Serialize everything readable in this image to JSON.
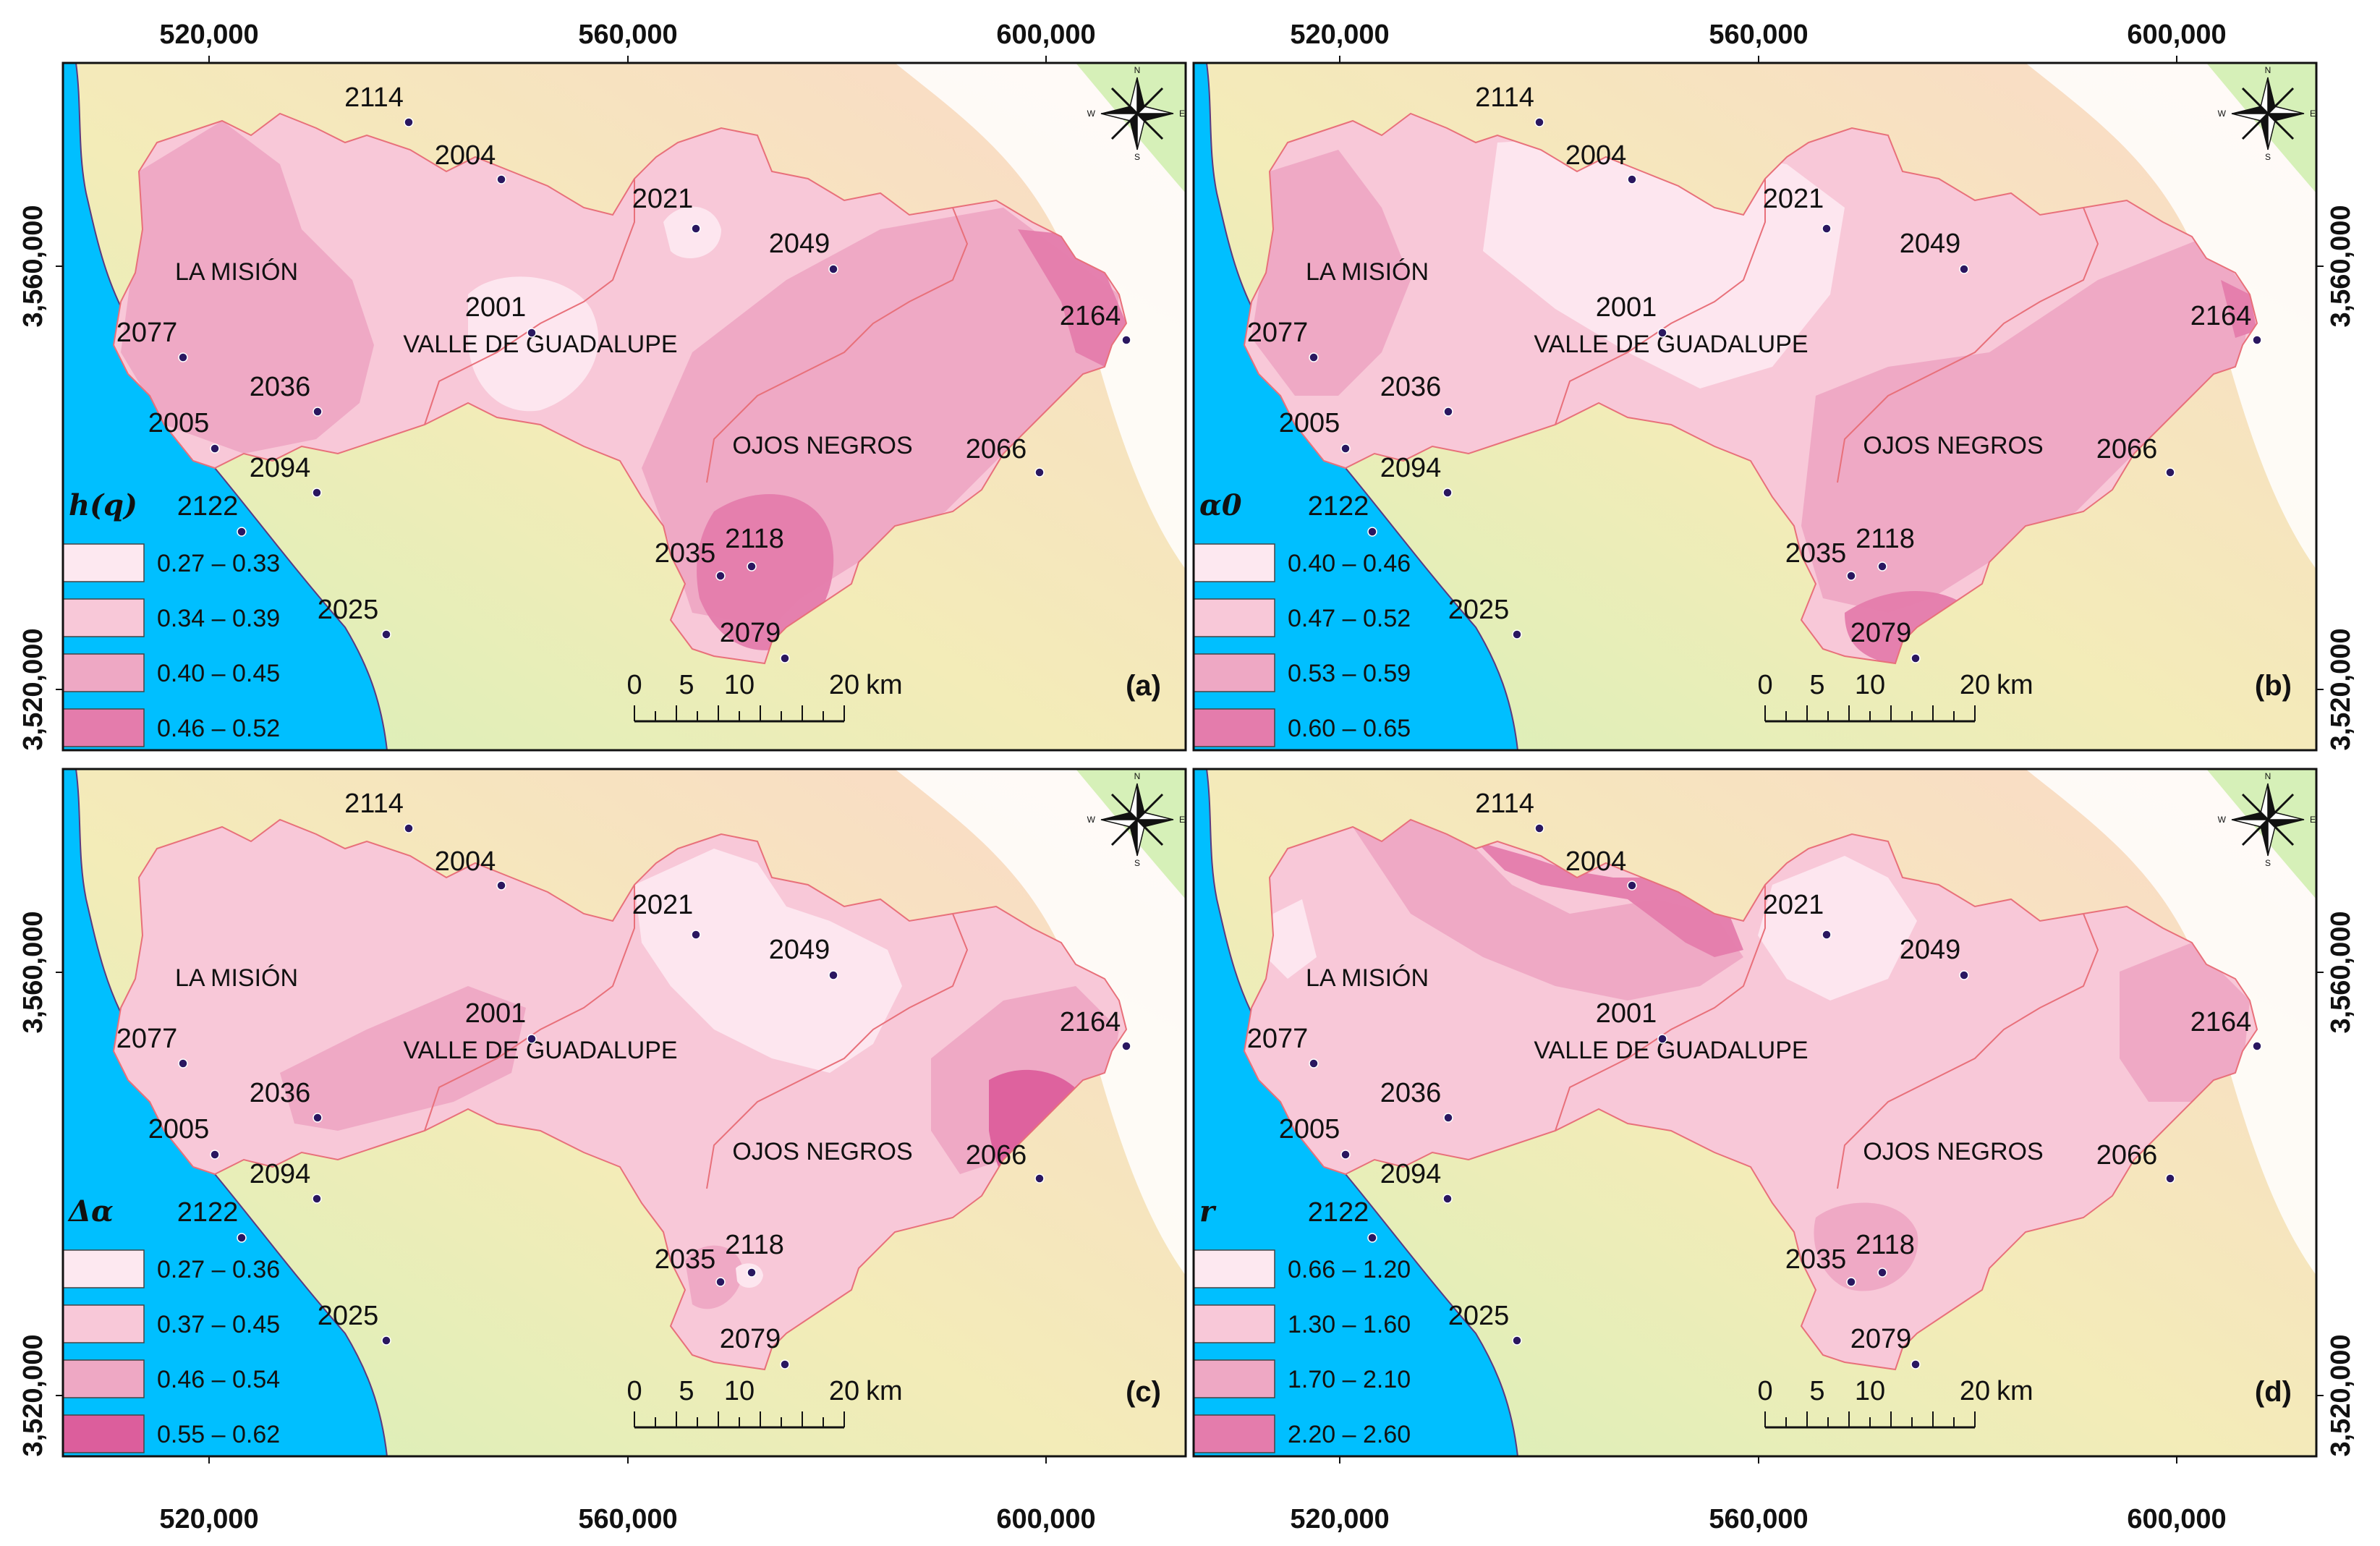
{
  "figure": {
    "x_ticks": [
      "520,000",
      "560,000",
      "600,000"
    ],
    "y_ticks": [
      "3,560,000",
      "3,520,000"
    ],
    "scale_bar": {
      "labels": [
        "0",
        "5",
        "10",
        "20"
      ],
      "unit": "km"
    },
    "compass": {
      "n": "N",
      "s": "S",
      "e": "E",
      "w": "W"
    },
    "colors": {
      "ocean": "#00bfff",
      "terrain_low": "#d6f0b8",
      "terrain_mid": "#f3ecb8",
      "terrain_high": "#fbd9c8",
      "basin_edge": "#e8707a",
      "class_1": "#fde8f0",
      "class_2": "#f8c8d8",
      "class_3": "#eea8c4",
      "class_4": "#e47cac",
      "station_dot": "#2a1760"
    },
    "regions": [
      "LA MISIÓN",
      "VALLE DE GUADALUPE",
      "OJOS NEGROS"
    ],
    "stations": [
      "2114",
      "2004",
      "2021",
      "2049",
      "2164",
      "2001",
      "2077",
      "2036",
      "2005",
      "2094",
      "2066",
      "2122",
      "2035",
      "2118",
      "2025",
      "2079"
    ],
    "panels": [
      {
        "letter": "(a)",
        "variable": "h(q)",
        "legend": [
          {
            "range": "0.27 – 0.33",
            "color": "#fde8f0"
          },
          {
            "range": "0.34 – 0.39",
            "color": "#f8c8d8"
          },
          {
            "range": "0.40 – 0.45",
            "color": "#eea8c4"
          },
          {
            "range": "0.46 – 0.52",
            "color": "#e47cac"
          }
        ]
      },
      {
        "letter": "(b)",
        "variable": "α0",
        "legend": [
          {
            "range": "0.40 – 0.46",
            "color": "#fde8f0"
          },
          {
            "range": "0.47 – 0.52",
            "color": "#f8c8d8"
          },
          {
            "range": "0.53 – 0.59",
            "color": "#eea8c4"
          },
          {
            "range": "0.60 – 0.65",
            "color": "#e47cac"
          }
        ]
      },
      {
        "letter": "(c)",
        "variable": "Δα",
        "legend": [
          {
            "range": "0.27 – 0.36",
            "color": "#fde8f0"
          },
          {
            "range": "0.37 – 0.45",
            "color": "#f8c8d8"
          },
          {
            "range": "0.46 – 0.54",
            "color": "#eea8c4"
          },
          {
            "range": "0.55 – 0.62",
            "color": "#dc5e9c"
          }
        ]
      },
      {
        "letter": "(d)",
        "variable": "r",
        "legend": [
          {
            "range": "0.66 – 1.20",
            "color": "#fde8f0"
          },
          {
            "range": "1.30 – 1.60",
            "color": "#f8c8d8"
          },
          {
            "range": "1.70 – 2.10",
            "color": "#eea8c4"
          },
          {
            "range": "2.20 – 2.60",
            "color": "#e47cac"
          }
        ]
      }
    ]
  }
}
